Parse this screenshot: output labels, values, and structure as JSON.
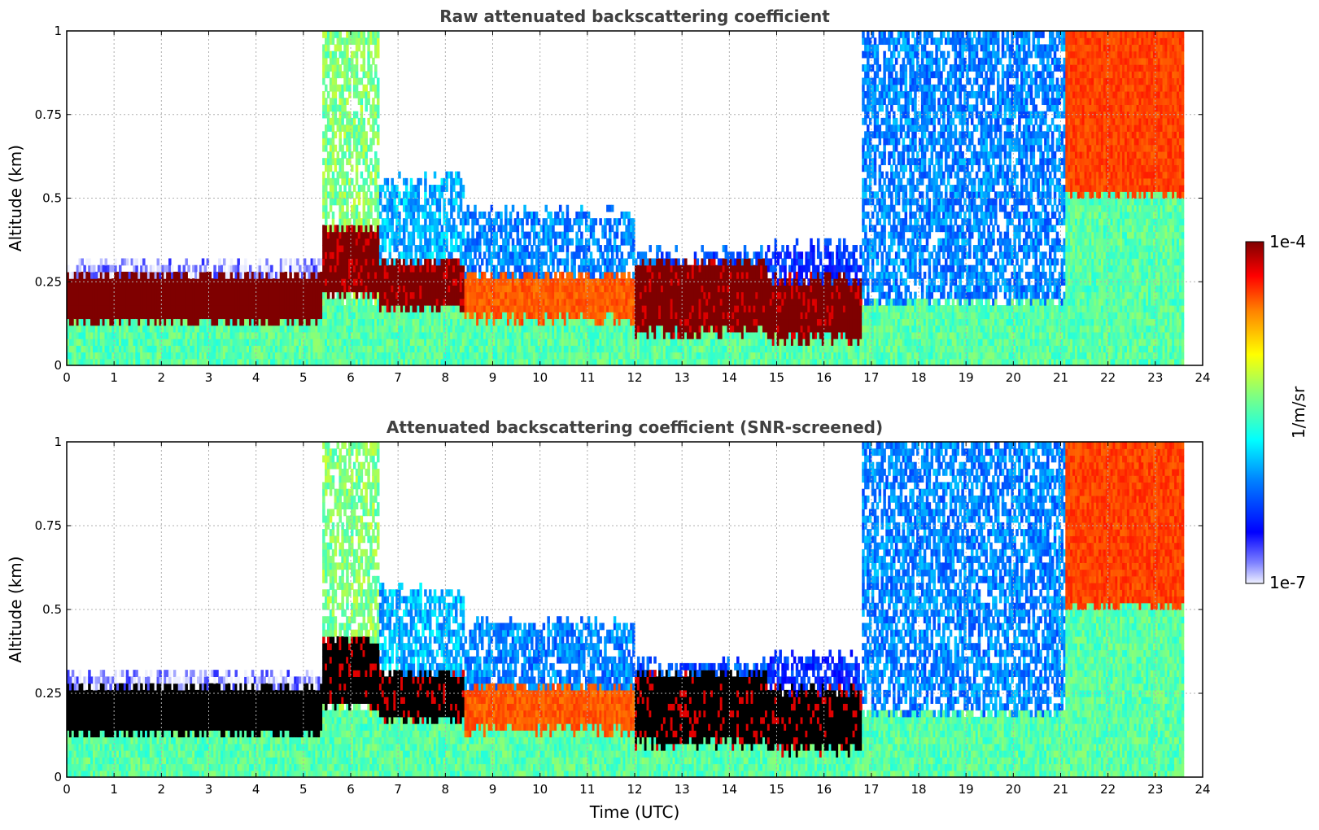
{
  "chart_data": [
    {
      "type": "heatmap",
      "title": "Raw attenuated backscattering coefficient",
      "xlabel": "",
      "ylabel": "Altitude (km)",
      "xlim": [
        0,
        24
      ],
      "ylim": [
        0,
        1
      ],
      "xticks": [
        "0",
        "1",
        "2",
        "3",
        "4",
        "5",
        "6",
        "7",
        "8",
        "9",
        "10",
        "11",
        "12",
        "13",
        "14",
        "15",
        "16",
        "17",
        "18",
        "19",
        "20",
        "21",
        "22",
        "23",
        "24"
      ],
      "yticks": [
        "0",
        "0.25",
        "0.5",
        "0.75",
        "1"
      ],
      "grid": true,
      "saturated_color": "#7f0000",
      "regions": [
        {
          "t0": 0.0,
          "t1": 5.4,
          "low_top": 0.12,
          "band_bottom": 0.12,
          "band_top": 0.26,
          "band_level": 0.95,
          "above_top": 0.3,
          "above_level": 0.05
        },
        {
          "t0": 5.4,
          "t1": 6.6,
          "low_top": 0.18,
          "band_bottom": 0.2,
          "band_top": 0.4,
          "band_level": 0.92,
          "above_top": 1.0,
          "above_level": 0.55
        },
        {
          "t0": 6.6,
          "t1": 8.4,
          "low_top": 0.16,
          "band_bottom": 0.16,
          "band_top": 0.3,
          "band_level": 0.92,
          "above_top": 0.55,
          "above_level": 0.35
        },
        {
          "t0": 8.4,
          "t1": 12.0,
          "low_top": 0.13,
          "band_bottom": 0.12,
          "band_top": 0.26,
          "band_level": 0.8,
          "above_top": 0.45,
          "above_level": 0.3
        },
        {
          "t0": 12.0,
          "t1": 14.8,
          "low_top": 0.09,
          "band_bottom": 0.09,
          "band_top": 0.3,
          "band_level": 0.92,
          "above_top": 0.33,
          "above_level": 0.25
        },
        {
          "t0": 14.8,
          "t1": 16.8,
          "low_top": 0.07,
          "band_bottom": 0.07,
          "band_top": 0.25,
          "band_level": 0.92,
          "above_top": 0.35,
          "above_level": 0.2
        },
        {
          "t0": 16.8,
          "t1": 21.1,
          "low_top": 0.18,
          "band_bottom": 0.1,
          "band_top": 0.14,
          "band_level": 0.4,
          "above_top": 1.0,
          "above_level": 0.3
        },
        {
          "t0": 21.1,
          "t1": 23.6,
          "low_top": 0.5,
          "band_bottom": 0.0,
          "band_top": 1.0,
          "band_level": 0.82,
          "above_top": 1.0,
          "above_level": 0.7
        }
      ]
    },
    {
      "type": "heatmap",
      "title": "Attenuated backscattering coefficient (SNR-screened)",
      "xlabel": "Time (UTC)",
      "ylabel": "Altitude (km)",
      "xlim": [
        0,
        24
      ],
      "ylim": [
        0,
        1
      ],
      "xticks": [
        "0",
        "1",
        "2",
        "3",
        "4",
        "5",
        "6",
        "7",
        "8",
        "9",
        "10",
        "11",
        "12",
        "13",
        "14",
        "15",
        "16",
        "17",
        "18",
        "19",
        "20",
        "21",
        "22",
        "23",
        "24"
      ],
      "yticks": [
        "0",
        "0.25",
        "0.5",
        "0.75",
        "1"
      ],
      "grid": true,
      "saturated_color": "#000000",
      "regions": [
        {
          "t0": 0.0,
          "t1": 5.4,
          "low_top": 0.12,
          "band_bottom": 0.12,
          "band_top": 0.26,
          "band_level": 0.95,
          "above_top": 0.3,
          "above_level": 0.05
        },
        {
          "t0": 5.4,
          "t1": 6.6,
          "low_top": 0.18,
          "band_bottom": 0.2,
          "band_top": 0.4,
          "band_level": 0.92,
          "above_top": 1.0,
          "above_level": 0.55
        },
        {
          "t0": 6.6,
          "t1": 8.4,
          "low_top": 0.16,
          "band_bottom": 0.16,
          "band_top": 0.3,
          "band_level": 0.92,
          "above_top": 0.55,
          "above_level": 0.35
        },
        {
          "t0": 8.4,
          "t1": 12.0,
          "low_top": 0.13,
          "band_bottom": 0.12,
          "band_top": 0.26,
          "band_level": 0.8,
          "above_top": 0.45,
          "above_level": 0.3
        },
        {
          "t0": 12.0,
          "t1": 14.8,
          "low_top": 0.09,
          "band_bottom": 0.09,
          "band_top": 0.3,
          "band_level": 0.92,
          "above_top": 0.33,
          "above_level": 0.25
        },
        {
          "t0": 14.8,
          "t1": 16.8,
          "low_top": 0.07,
          "band_bottom": 0.07,
          "band_top": 0.25,
          "band_level": 0.92,
          "above_top": 0.35,
          "above_level": 0.2
        },
        {
          "t0": 16.8,
          "t1": 21.1,
          "low_top": 0.18,
          "band_bottom": 0.1,
          "band_top": 0.14,
          "band_level": 0.4,
          "above_top": 1.0,
          "above_level": 0.3
        },
        {
          "t0": 21.1,
          "t1": 23.6,
          "low_top": 0.5,
          "band_bottom": 0.0,
          "band_top": 1.0,
          "band_level": 0.82,
          "above_top": 1.0,
          "above_level": 0.7
        }
      ]
    }
  ],
  "colorbar": {
    "max_label": "1e-4",
    "min_label": "1e-7",
    "unit_label": "1/m/sr",
    "scale": "log"
  }
}
